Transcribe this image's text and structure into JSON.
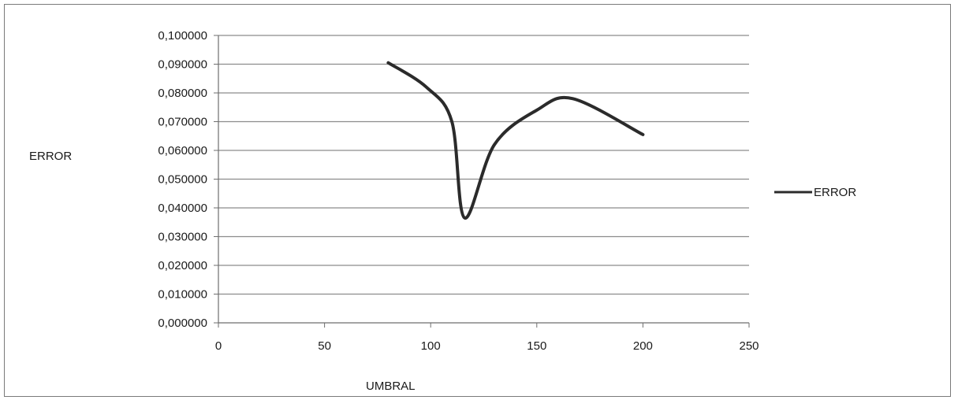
{
  "chart_data": {
    "type": "line",
    "title": "",
    "xlabel": "UMBRAL",
    "ylabel": "ERROR",
    "xlim": [
      0,
      250
    ],
    "ylim": [
      0,
      0.1
    ],
    "x_ticks": [
      0,
      50,
      100,
      150,
      200,
      250
    ],
    "x_tick_labels": [
      "0",
      "50",
      "100",
      "150",
      "200",
      "250"
    ],
    "y_ticks": [
      0,
      0.01,
      0.02,
      0.03,
      0.04,
      0.05,
      0.06,
      0.07,
      0.08,
      0.09,
      0.1
    ],
    "y_tick_labels": [
      "0,000000",
      "0,010000",
      "0,020000",
      "0,030000",
      "0,040000",
      "0,050000",
      "0,060000",
      "0,070000",
      "0,080000",
      "0,090000",
      "0,100000"
    ],
    "grid": "horizontal",
    "legend_position": "right",
    "series": [
      {
        "name": "ERROR",
        "color": "#2b2b2b",
        "x": [
          80,
          98,
          110,
          116,
          130,
          150,
          167,
          200
        ],
        "y": [
          0.0905,
          0.082,
          0.07,
          0.0365,
          0.062,
          0.074,
          0.078,
          0.0655
        ]
      }
    ]
  }
}
